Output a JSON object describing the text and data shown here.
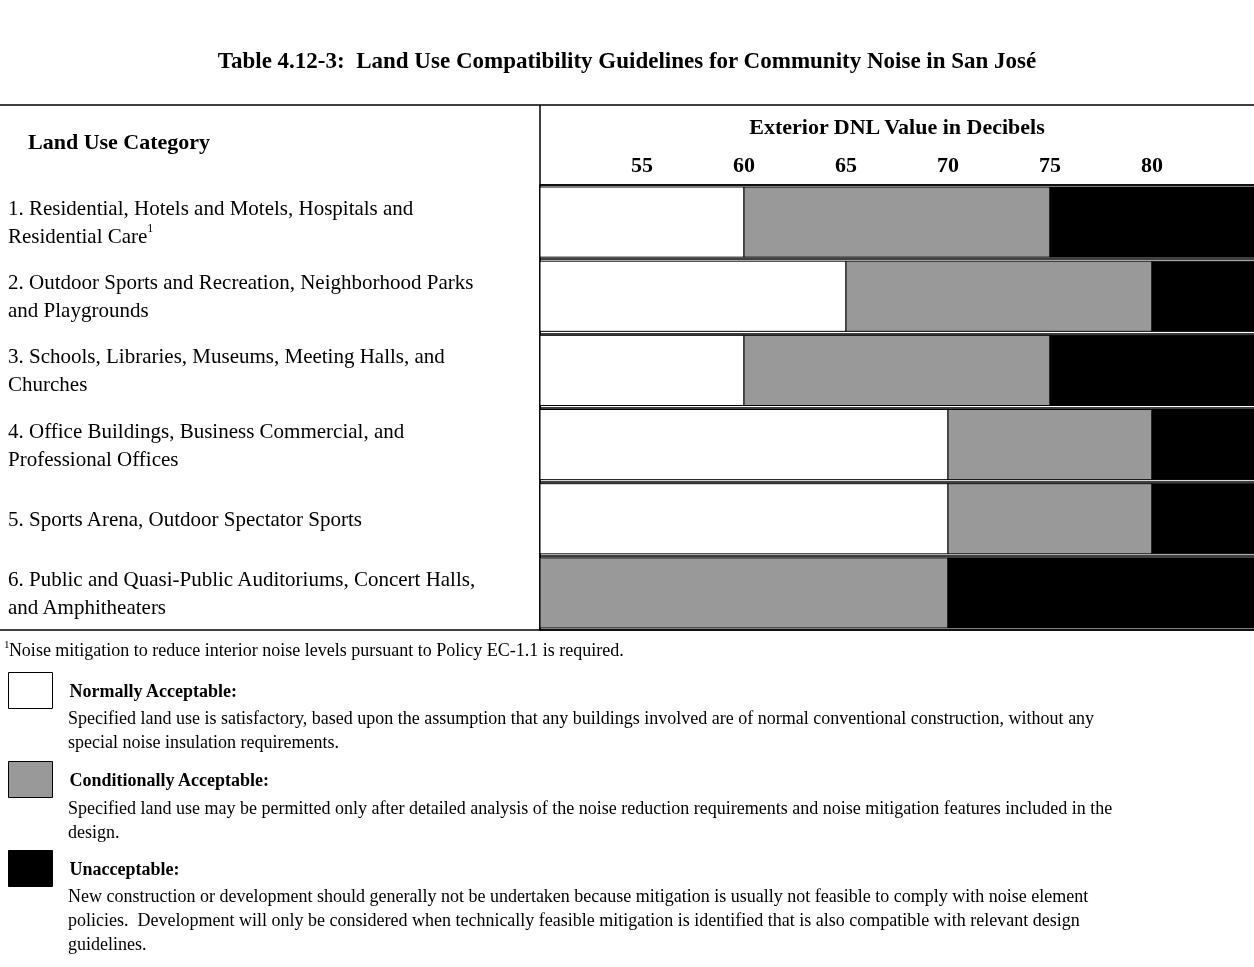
{
  "chart_data": {
    "type": "bar",
    "orientation": "horizontal",
    "title": "Table 4.12-3:  Land Use Compatibility Guidelines for Community Noise in San José",
    "xlabel": "Exterior DNL Value in Decibels",
    "ylabel": "Land Use Category",
    "categories": [
      "1. Residential, Hotels and Motels, Hospitals and Residential Care$^{1}$",
      "2. Outdoor Sports and Recreation, Neighborhood Parks and Playgrounds",
      "3. Schools, Libraries, Museums, Meeting Halls, and Churches",
      "4. Office Buildings, Business Commercial, and Professional Offices",
      "5. Sports Arena, Outdoor Spectator Sports",
      "6. Public and Quasi-Public Auditoriums, Concert Halls, and Amphitheaters"
    ],
    "series": [
      {
        "name": "Normally Acceptable:",
        "color": "#ffffff",
        "base": [
          50,
          50,
          50,
          50,
          50,
          null
        ],
        "values": [
          10,
          15,
          10,
          20,
          20,
          null
        ]
      },
      {
        "name": "Conditionally Acceptable:",
        "color": "#999999",
        "base": [
          60,
          65,
          60,
          70,
          70,
          50
        ],
        "values": [
          15,
          15,
          15,
          10,
          10,
          20
        ]
      },
      {
        "name": "Unacceptable:",
        "color": "#000000",
        "base": [
          75,
          80,
          75,
          80,
          80,
          70
        ],
        "values": [
          10,
          5,
          10,
          5,
          5,
          15
        ]
      }
    ],
    "xlim": [
      50,
      85
    ],
    "xticks": [
      55,
      60,
      65,
      70,
      75,
      80
    ],
    "grid": "y",
    "legend": "bottom left",
    "annotations": [
      "$^{1}$Noise mitigation to reduce interior noise levels pursuant to Policy EC-1.1 is required.",
      "Specified land use is satisfactory, based upon the assumption that any buildings involved are of normal conventional construction, without any special noise insulation requirements.",
      "Specified land use may be permitted only after detailed analysis of the noise reduction requirements and noise mitigation features included in the design.",
      "New construction or development should generally not be undertaken because mitigation is usually not feasible to comply with noise element policies.  Development will only be considered when technically feasible mitigation is identified that is also compatible with relevant design guidelines."
    ]
  }
}
